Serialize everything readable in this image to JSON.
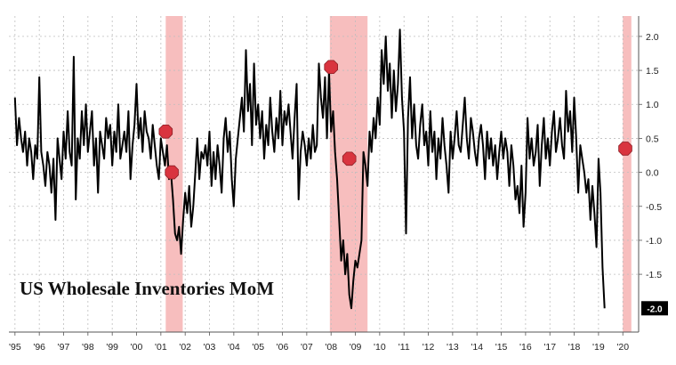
{
  "chart_data": {
    "type": "line",
    "title": "US Wholesale Inventories MoM",
    "xlabel": "",
    "ylabel": "",
    "x_start": 1995.0,
    "x_step": 0.08333,
    "ylim": [
      -2.35,
      2.3
    ],
    "xlim": [
      1994.75,
      2020.65
    ],
    "grid": true,
    "x_tick_labels": [
      "'95",
      "'96",
      "'97",
      "'98",
      "'99",
      "'00",
      "'01",
      "'02",
      "'03",
      "'04",
      "'05",
      "'06",
      "'07",
      "'08",
      "'09",
      "'10",
      "'11",
      "'12",
      "'13",
      "'14",
      "'15",
      "'16",
      "'17",
      "'18",
      "'19",
      "'20"
    ],
    "x_tick_values": [
      1995,
      1996,
      1997,
      1998,
      1999,
      2000,
      2001,
      2002,
      2003,
      2004,
      2005,
      2006,
      2007,
      2008,
      2009,
      2010,
      2011,
      2012,
      2013,
      2014,
      2015,
      2016,
      2017,
      2018,
      2019,
      2020
    ],
    "y_tick_labels": [
      "2.0",
      "1.5",
      "1.0",
      "0.5",
      "0.0",
      "-0.5",
      "-1.0",
      "-1.5"
    ],
    "y_tick_values": [
      2.0,
      1.5,
      1.0,
      0.5,
      0.0,
      -0.5,
      -1.0,
      -1.5
    ],
    "last_value_label": "-2.0",
    "last_value": -2.0,
    "recessions": [
      [
        2001.2,
        2001.9
      ],
      [
        2007.95,
        2009.5
      ],
      [
        2020.0,
        2020.35
      ]
    ],
    "series": [
      {
        "color": "#000000",
        "values": [
          1.1,
          0.4,
          0.8,
          0.5,
          0.3,
          0.6,
          0.1,
          0.5,
          0.3,
          -0.1,
          0.4,
          0.2,
          1.4,
          0.3,
          0.1,
          -0.2,
          0.3,
          0.1,
          -0.3,
          0.2,
          -0.7,
          0.5,
          0.2,
          -0.1,
          0.6,
          0.2,
          0.9,
          0.3,
          0.1,
          1.7,
          -0.4,
          0.5,
          0.2,
          0.9,
          0.4,
          1.0,
          0.3,
          0.6,
          0.9,
          0.1,
          0.5,
          -0.3,
          0.6,
          0.4,
          0.2,
          0.8,
          0.5,
          0.7,
          0.1,
          0.6,
          0.3,
          1.0,
          0.2,
          0.4,
          0.6,
          0.3,
          0.9,
          -0.1,
          0.4,
          0.7,
          1.3,
          0.5,
          0.8,
          0.3,
          0.9,
          0.6,
          0.5,
          0.2,
          0.7,
          0.4,
          0.1,
          -0.1,
          0.5,
          0.3,
          0.1,
          0.4,
          -0.1,
          0.0,
          -0.4,
          -0.9,
          -1.0,
          -0.8,
          -1.2,
          -0.7,
          -0.3,
          -0.6,
          -0.2,
          -0.8,
          -0.5,
          0.0,
          0.5,
          -0.1,
          0.3,
          0.2,
          0.4,
          0.1,
          0.6,
          -0.2,
          0.3,
          -0.1,
          0.4,
          0.1,
          -0.3,
          0.5,
          0.8,
          0.3,
          0.6,
          -0.1,
          -0.5,
          0.2,
          0.5,
          0.8,
          1.1,
          0.6,
          1.8,
          0.9,
          1.3,
          0.4,
          1.6,
          0.7,
          1.0,
          0.5,
          0.9,
          0.2,
          0.7,
          0.4,
          1.1,
          0.6,
          0.3,
          0.8,
          0.5,
          1.2,
          0.4,
          0.9,
          0.7,
          1.0,
          0.6,
          0.2,
          0.8,
          1.3,
          -0.4,
          0.3,
          0.6,
          0.4,
          0.1,
          0.5,
          0.2,
          0.7,
          0.3,
          0.4,
          1.6,
          1.1,
          0.8,
          1.4,
          0.5,
          1.5,
          0.6,
          0.9,
          0.3,
          -0.1,
          -0.7,
          -1.3,
          -1.0,
          -1.5,
          -1.2,
          -1.8,
          -2.0,
          -1.6,
          -1.3,
          -1.4,
          -1.2,
          -1.0,
          0.3,
          0.1,
          -0.2,
          0.6,
          0.3,
          0.8,
          0.5,
          1.1,
          0.7,
          1.8,
          1.3,
          2.0,
          1.2,
          1.6,
          0.8,
          1.5,
          0.9,
          1.3,
          2.1,
          1.1,
          0.6,
          -0.9,
          0.8,
          1.4,
          0.5,
          1.0,
          0.4,
          0.2,
          0.7,
          1.0,
          0.4,
          0.6,
          0.1,
          0.9,
          0.3,
          0.6,
          -0.1,
          0.5,
          0.2,
          0.8,
          0.4,
          0.1,
          -0.3,
          0.6,
          0.2,
          0.5,
          0.9,
          0.4,
          0.3,
          0.7,
          1.1,
          0.5,
          0.2,
          0.8,
          0.6,
          0.3,
          0.1,
          0.5,
          0.7,
          0.4,
          -0.1,
          0.6,
          0.2,
          0.5,
          0.1,
          0.4,
          -0.1,
          0.3,
          0.6,
          0.2,
          0.5,
          0.3,
          -0.2,
          0.4,
          0.1,
          -0.4,
          -0.2,
          -0.6,
          0.1,
          -0.8,
          -0.3,
          0.8,
          0.2,
          0.5,
          0.1,
          0.3,
          0.7,
          -0.2,
          0.4,
          0.8,
          0.2,
          0.5,
          0.1,
          0.6,
          0.9,
          0.3,
          0.5,
          0.8,
          0.4,
          0.2,
          1.2,
          0.6,
          0.9,
          0.3,
          1.1,
          0.5,
          -0.3,
          0.4,
          0.2,
          0.0,
          -0.3,
          -0.1,
          -0.7,
          -0.2,
          -0.6,
          -1.1,
          0.2,
          -0.3,
          -1.4,
          -2.0
        ]
      }
    ]
  }
}
